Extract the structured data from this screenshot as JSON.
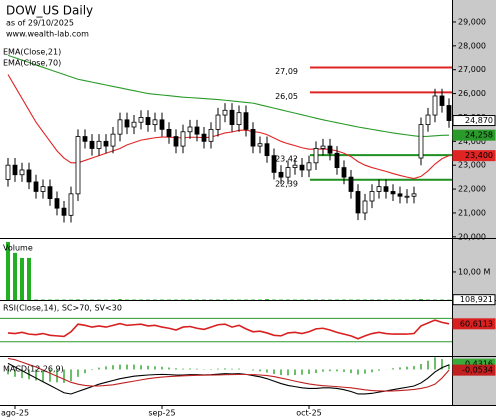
{
  "chart_data": [
    {
      "type": "candlestick",
      "title": "DOW_US Daily",
      "subtitle": "as of 29/10/2025",
      "source": "www.wealth-lab.com",
      "categories": [
        null,
        "ago-25",
        null,
        null,
        null,
        null,
        null,
        null,
        null,
        null,
        null,
        null,
        null,
        null,
        null,
        null,
        null,
        null,
        null,
        null,
        null,
        null,
        "sep-25",
        null,
        null,
        null,
        null,
        null,
        null,
        null,
        null,
        null,
        null,
        null,
        null,
        null,
        null,
        null,
        null,
        null,
        null,
        null,
        null,
        "oct-25",
        null,
        null,
        null,
        null,
        null,
        null,
        null,
        null,
        null,
        null,
        null,
        null,
        null,
        null,
        null,
        null,
        null,
        null,
        null,
        null
      ],
      "open": [
        22400,
        23000,
        22600,
        22800,
        22300,
        21900,
        22100,
        21600,
        21200,
        20900,
        21800,
        24200,
        24000,
        23700,
        24000,
        23800,
        24300,
        24900,
        24600,
        24800,
        25000,
        24700,
        24900,
        24500,
        24200,
        23800,
        24400,
        24600,
        24300,
        24000,
        24500,
        25100,
        25300,
        24700,
        25200,
        24500,
        23800,
        23900,
        23400,
        22700,
        22500,
        22900,
        23000,
        22800,
        23100,
        23700,
        23800,
        23500,
        22900,
        22500,
        21900,
        21000,
        21500,
        21900,
        22100,
        21900,
        21800,
        21700,
        21700,
        23300,
        24700,
        25100,
        25900,
        25500
      ],
      "high": [
        23300,
        23300,
        23100,
        23100,
        22600,
        22400,
        22400,
        21900,
        21500,
        22100,
        24500,
        24500,
        24300,
        24300,
        24300,
        24600,
        25200,
        25200,
        25100,
        25300,
        25300,
        25200,
        25200,
        24800,
        24500,
        24700,
        24900,
        24900,
        24600,
        24800,
        25400,
        25600,
        25600,
        25500,
        25500,
        24800,
        24200,
        24200,
        23700,
        23000,
        23200,
        23300,
        23300,
        23400,
        24000,
        24100,
        24100,
        23800,
        23200,
        22800,
        22200,
        21800,
        22200,
        22400,
        22400,
        22200,
        22100,
        22000,
        22100,
        25000,
        25400,
        26200,
        26200,
        25800
      ],
      "low": [
        22100,
        22300,
        22300,
        22000,
        21600,
        21600,
        21300,
        20900,
        20600,
        20600,
        21500,
        23700,
        23400,
        23400,
        23500,
        23500,
        24000,
        24300,
        24300,
        24500,
        24400,
        24400,
        24200,
        23900,
        23500,
        23500,
        24100,
        24000,
        23700,
        23700,
        24200,
        24800,
        24400,
        24400,
        24200,
        23500,
        23500,
        23100,
        22400,
        22200,
        22200,
        22600,
        22500,
        22500,
        22800,
        23400,
        23200,
        22600,
        22200,
        21600,
        20700,
        20700,
        21200,
        21600,
        21600,
        21500,
        21400,
        21400,
        21400,
        23000,
        24400,
        24800,
        25200,
        24570
      ],
      "close": [
        23000,
        22600,
        22800,
        22300,
        21900,
        22100,
        21600,
        21200,
        20900,
        21800,
        24200,
        24000,
        23700,
        24000,
        23800,
        24300,
        24900,
        24600,
        24800,
        25000,
        24700,
        24900,
        24500,
        24200,
        23800,
        24400,
        24600,
        24300,
        24000,
        24500,
        25100,
        25300,
        24700,
        25200,
        24500,
        23800,
        23900,
        23400,
        22700,
        22500,
        22900,
        23000,
        22800,
        23100,
        23700,
        23800,
        23500,
        22900,
        22500,
        21900,
        21000,
        21500,
        21900,
        22100,
        21900,
        21800,
        21700,
        21700,
        21800,
        24700,
        25100,
        25900,
        25500,
        24870
      ],
      "close_last_label": "24,870",
      "series": [
        {
          "name": "EMA(Close,21)",
          "color": "#e02424",
          "last_label": "23,400",
          "values": [
            26800,
            26300,
            25800,
            25300,
            24800,
            24400,
            24000,
            23600,
            23300,
            23100,
            23100,
            23200,
            23300,
            23400,
            23500,
            23600,
            23700,
            23850,
            23950,
            24050,
            24100,
            24150,
            24180,
            24180,
            24150,
            24150,
            24170,
            24170,
            24150,
            24180,
            24260,
            24350,
            24390,
            24460,
            24470,
            24410,
            24370,
            24280,
            24140,
            24000,
            23900,
            23820,
            23730,
            23670,
            23670,
            23680,
            23660,
            23600,
            23500,
            23360,
            23150,
            23000,
            22900,
            22820,
            22740,
            22650,
            22570,
            22500,
            22440,
            22530,
            22760,
            23050,
            23270,
            23400
          ]
        },
        {
          "name": "EMA(Close,70)",
          "color": "#2a9a2a",
          "last_label": "24,258",
          "values": [
            27600,
            27500,
            27400,
            27300,
            27200,
            27100,
            27000,
            26900,
            26800,
            26700,
            26600,
            26540,
            26480,
            26420,
            26360,
            26300,
            26240,
            26180,
            26120,
            26060,
            26000,
            25970,
            25940,
            25910,
            25880,
            25850,
            25830,
            25810,
            25790,
            25770,
            25750,
            25720,
            25690,
            25660,
            25630,
            25600,
            25530,
            25460,
            25390,
            25320,
            25250,
            25180,
            25110,
            25040,
            24970,
            24900,
            24840,
            24780,
            24720,
            24660,
            24600,
            24550,
            24500,
            24450,
            24400,
            24350,
            24310,
            24270,
            24230,
            24200,
            24210,
            24230,
            24250,
            24258
          ]
        }
      ],
      "levels": [
        {
          "value": 27090,
          "label": "27,09",
          "color": "#e02424"
        },
        {
          "value": 26050,
          "label": "26,05",
          "color": "#e02424"
        },
        {
          "value": 23420,
          "label": "23,42",
          "color": "#1f8f1f"
        },
        {
          "value": 22390,
          "label": "22,39",
          "color": "#1f8f1f"
        }
      ],
      "ylim": [
        19950,
        29920
      ],
      "yticks": [
        {
          "value": 20000,
          "label": "20,000"
        },
        {
          "value": 21000,
          "label": "21,000"
        },
        {
          "value": 22000,
          "label": "22,000"
        },
        {
          "value": 23000,
          "label": "23,000"
        },
        {
          "value": 24000,
          "label": "24,000"
        },
        {
          "value": 25000,
          "label": "25,000"
        },
        {
          "value": 26000,
          "label": "26,000"
        },
        {
          "value": 27000,
          "label": "27,000"
        },
        {
          "value": 28000,
          "label": "28,000"
        },
        {
          "value": 29000,
          "label": "29,000"
        }
      ]
    },
    {
      "type": "bar",
      "title": "Volume",
      "color": "#22b022",
      "last_label": "108,921",
      "values": [
        20700000,
        16800000,
        15000000,
        15000000,
        150000,
        150000,
        150000,
        150000,
        150000,
        150000,
        200000,
        150000,
        150000,
        150000,
        150000,
        150000,
        300000,
        150000,
        150000,
        150000,
        150000,
        150000,
        150000,
        150000,
        150000,
        150000,
        150000,
        150000,
        150000,
        150000,
        150000,
        150000,
        150000,
        150000,
        150000,
        150000,
        150000,
        300000,
        150000,
        150000,
        150000,
        150000,
        150000,
        150000,
        150000,
        150000,
        150000,
        150000,
        150000,
        150000,
        150000,
        150000,
        150000,
        150000,
        150000,
        150000,
        150000,
        150000,
        150000,
        300000,
        150000,
        150000,
        150000,
        108921
      ],
      "ylim": [
        0,
        22100000
      ],
      "yticks": [
        {
          "value": 10000000,
          "label": "10,00 M"
        }
      ]
    },
    {
      "type": "line",
      "title": "RSI(Close,14), SC>70, SV<30",
      "color": "#d92020",
      "last_label": "60,6113",
      "values": [
        45,
        44,
        46,
        43,
        42,
        44,
        41,
        40,
        39,
        47,
        60,
        58,
        55,
        57,
        55,
        58,
        61,
        58,
        59,
        60,
        57,
        58,
        55,
        53,
        50,
        55,
        56,
        53,
        51,
        55,
        59,
        60,
        55,
        58,
        52,
        47,
        48,
        45,
        41,
        40,
        45,
        46,
        44,
        47,
        52,
        53,
        50,
        46,
        43,
        40,
        35,
        40,
        44,
        46,
        44,
        43,
        43,
        43,
        44,
        57,
        62,
        67,
        63,
        60.6113
      ],
      "levels": [
        70,
        30
      ],
      "level_color": "#2a9a2a",
      "ylim": [
        5.6,
        101.3
      ]
    },
    {
      "type": "macd",
      "title": "MACD(12,26,9)",
      "macd": {
        "color": "#000000",
        "values": [
          0.5,
          0.2,
          -0.1,
          -0.4,
          -0.7,
          -1.0,
          -1.3,
          -1.6,
          -1.9,
          -2.0,
          -1.8,
          -1.6,
          -1.4,
          -1.2,
          -1.05,
          -0.9,
          -0.75,
          -0.65,
          -0.55,
          -0.5,
          -0.45,
          -0.42,
          -0.4,
          -0.42,
          -0.45,
          -0.45,
          -0.42,
          -0.42,
          -0.44,
          -0.42,
          -0.38,
          -0.34,
          -0.36,
          -0.34,
          -0.4,
          -0.5,
          -0.6,
          -0.75,
          -0.95,
          -1.15,
          -1.3,
          -1.4,
          -1.5,
          -1.55,
          -1.55,
          -1.5,
          -1.5,
          -1.55,
          -1.65,
          -1.8,
          -2.0,
          -2.0,
          -1.95,
          -1.85,
          -1.75,
          -1.65,
          -1.55,
          -1.45,
          -1.35,
          -1.1,
          -0.7,
          -0.2,
          0.15,
          0.378
        ]
      },
      "signal": {
        "color": "#c02020",
        "last_label": "-0,0534",
        "values": [
          0.9,
          0.8,
          0.6,
          0.4,
          0.2,
          -0.05,
          -0.3,
          -0.55,
          -0.8,
          -1.05,
          -1.2,
          -1.3,
          -1.35,
          -1.35,
          -1.3,
          -1.25,
          -1.15,
          -1.05,
          -0.95,
          -0.85,
          -0.75,
          -0.68,
          -0.62,
          -0.58,
          -0.55,
          -0.52,
          -0.5,
          -0.48,
          -0.47,
          -0.46,
          -0.45,
          -0.43,
          -0.42,
          -0.41,
          -0.41,
          -0.42,
          -0.45,
          -0.5,
          -0.58,
          -0.7,
          -0.82,
          -0.95,
          -1.07,
          -1.18,
          -1.26,
          -1.32,
          -1.36,
          -1.4,
          -1.45,
          -1.5,
          -1.58,
          -1.66,
          -1.72,
          -1.75,
          -1.76,
          -1.75,
          -1.72,
          -1.68,
          -1.63,
          -1.55,
          -1.42,
          -1.2,
          -0.7,
          -0.0534
        ]
      },
      "histogram": {
        "color": "#3aaa3a",
        "last_label": "0,4316",
        "values": [
          -0.4,
          -0.6,
          -0.7,
          -0.8,
          -0.9,
          -0.95,
          -1.0,
          -1.05,
          -1.1,
          -0.95,
          -0.6,
          -0.3,
          -0.05,
          0.15,
          0.25,
          0.35,
          0.4,
          0.4,
          0.4,
          0.35,
          0.3,
          0.26,
          0.22,
          0.16,
          0.1,
          0.07,
          0.08,
          0.06,
          0.03,
          0.04,
          0.07,
          0.09,
          0.06,
          0.07,
          0.01,
          -0.08,
          -0.15,
          -0.25,
          -0.37,
          -0.45,
          -0.48,
          -0.45,
          -0.43,
          -0.37,
          -0.29,
          -0.18,
          -0.14,
          -0.15,
          -0.2,
          -0.3,
          -0.42,
          -0.34,
          -0.23,
          -0.1,
          0.01,
          0.1,
          0.17,
          0.23,
          0.28,
          0.45,
          0.72,
          1.0,
          0.85,
          0.4316
        ]
      },
      "ylim": [
        -2.9,
        1.1
      ]
    }
  ]
}
